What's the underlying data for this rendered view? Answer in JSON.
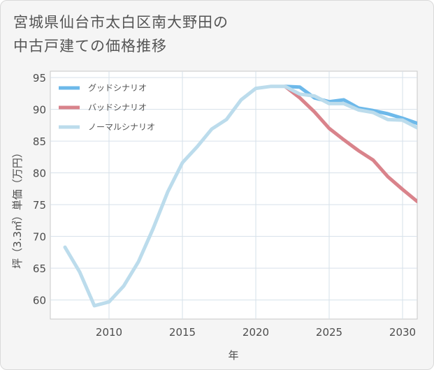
{
  "title": "宮城県仙台市太白区南大野田の\n中古戸建ての価格推移",
  "chart_data": {
    "type": "line",
    "title": "宮城県仙台市太白区南大野田の中古戸建ての価格推移",
    "xlabel": "年",
    "ylabel": "坪（3.3㎡）単価（万円）",
    "xlim": [
      2006,
      2031
    ],
    "ylim": [
      57,
      96
    ],
    "x_ticks": [
      2010,
      2015,
      2020,
      2025,
      2030
    ],
    "y_ticks": [
      60,
      65,
      70,
      75,
      80,
      85,
      90,
      95
    ],
    "grid": true,
    "legend_position": "top-left",
    "series": [
      {
        "name": "グッドシナリオ",
        "color": "#6db9ea",
        "x": [
          2022,
          2023,
          2024,
          2025,
          2026,
          2027,
          2028,
          2029,
          2030,
          2031
        ],
        "values": [
          93.6,
          93.5,
          91.8,
          91.2,
          91.5,
          90.2,
          89.8,
          89.3,
          88.6,
          87.8
        ]
      },
      {
        "name": "バッドシナリオ",
        "color": "#d9838b",
        "x": [
          2022,
          2023,
          2024,
          2025,
          2026,
          2027,
          2028,
          2029,
          2030,
          2031
        ],
        "values": [
          93.6,
          91.8,
          89.6,
          87.0,
          85.2,
          83.5,
          82.0,
          79.4,
          77.4,
          75.5
        ]
      },
      {
        "name": "ノーマルシナリオ",
        "color": "#bcdcec",
        "x": [
          2007,
          2008,
          2009,
          2010,
          2011,
          2012,
          2013,
          2014,
          2015,
          2016,
          2017,
          2018,
          2019,
          2020,
          2021,
          2022,
          2023,
          2024,
          2025,
          2026,
          2027,
          2028,
          2029,
          2030,
          2031
        ],
        "values": [
          68.3,
          64.4,
          59.1,
          59.7,
          62.2,
          66.0,
          71.2,
          77.0,
          81.6,
          84.1,
          86.9,
          88.4,
          91.5,
          93.3,
          93.6,
          93.6,
          92.4,
          92.1,
          90.9,
          90.9,
          89.9,
          89.5,
          88.4,
          88.3,
          87.1
        ]
      }
    ]
  }
}
